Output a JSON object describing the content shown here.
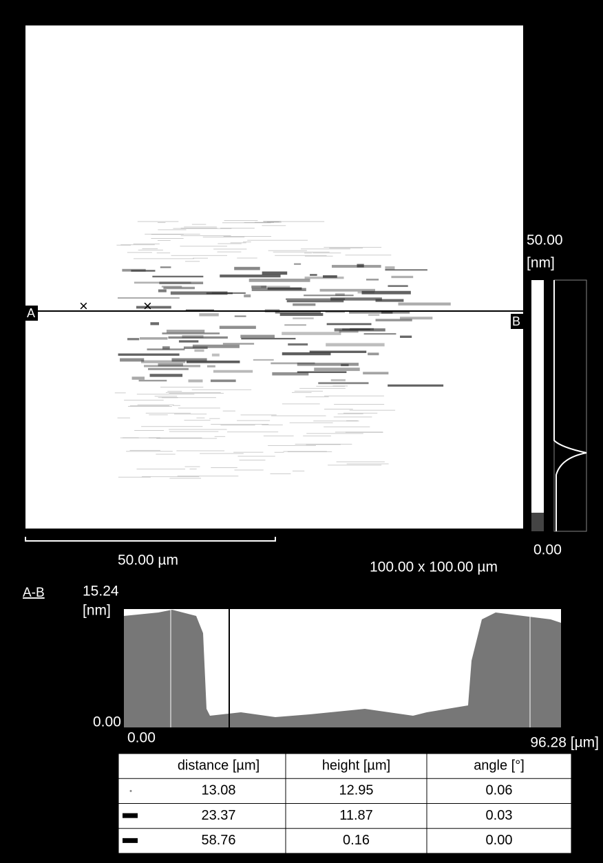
{
  "image_panel": {
    "color_scale": {
      "max": "50.00",
      "unit": "[nm]",
      "min": "0.00"
    },
    "markers": {
      "start": "A",
      "end": "B"
    },
    "scale_bar": "50.00 µm",
    "scan_size": "100.00 x 100.00 µm"
  },
  "profile": {
    "title": "A-B",
    "y_max": "15.24",
    "y_unit": "[nm]",
    "y_min": "0.00",
    "x_min": "0.00",
    "x_max": "96.28 [µm]"
  },
  "table": {
    "headers": [
      "distance [µm]",
      "height [µm]",
      "angle [°]"
    ],
    "rows": [
      [
        "13.08",
        "12.95",
        "0.06"
      ],
      [
        "23.37",
        "11.87",
        "0.03"
      ],
      [
        "58.76",
        "0.16",
        "0.00"
      ]
    ]
  }
}
